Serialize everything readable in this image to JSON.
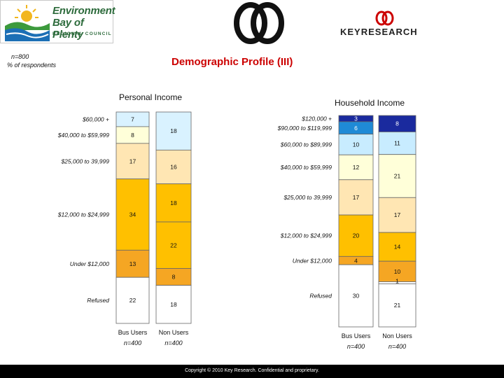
{
  "header": {
    "org_line1": "Environment",
    "org_line2": "Bay of Plenty",
    "org_line3": "REGIONAL COUNCIL",
    "brand": "KEYRESEARCH",
    "sample_note": "n=800",
    "units_note": "% of respondents",
    "title": "Demographic Profile (III)"
  },
  "footer": {
    "copyright": "Copyright © 2010 Key Research. Confidential and proprietary."
  },
  "colors": {
    "refused": "#ffffff",
    "under12": "#f5a623",
    "12to25": "#ffc000",
    "25to40": "#ffe6b3",
    "40to60": "#ffffd9",
    "60plus": "#d9f2ff",
    "60to90": "#c8ecff",
    "90to120": "#1f8ad6",
    "120plus": "#1a2a9e",
    "outline": "#666666",
    "title_red": "#cc0000"
  },
  "chart_data": [
    {
      "type": "bar",
      "stacked": true,
      "title": "Personal Income",
      "categories": [
        "Bus Users",
        "Non Users"
      ],
      "sample_sizes": [
        "n=400",
        "n=400"
      ],
      "segments": [
        {
          "name": "$60,000 +",
          "values": [
            7,
            18
          ]
        },
        {
          "name": "$40,000 to $59,999",
          "values": [
            8,
            null
          ]
        },
        {
          "name": "$25,000 to 39,999",
          "values": [
            17,
            16
          ]
        },
        {
          "name": "$12,000 to $24,999",
          "values": [
            34,
            18
          ]
        },
        {
          "name": "Under $12,000",
          "values": [
            13,
            22
          ]
        },
        {
          "name": "Refused",
          "values": [
            22,
            8
          ]
        },
        {
          "name": "",
          "values": [
            null,
            18
          ]
        }
      ]
    },
    {
      "type": "bar",
      "stacked": true,
      "title": "Household Income",
      "categories": [
        "Bus Users",
        "Non Users"
      ],
      "sample_sizes": [
        "n=400",
        "n=400"
      ],
      "segments": [
        {
          "name": "$120,000 +",
          "values": [
            3,
            8
          ]
        },
        {
          "name": "$90,000 to $119,999",
          "values": [
            6,
            null
          ]
        },
        {
          "name": "$60,000 to $89,999",
          "values": [
            10,
            11
          ]
        },
        {
          "name": "$40,000 to $59,999",
          "values": [
            12,
            21
          ]
        },
        {
          "name": "$25,000 to 39,999",
          "values": [
            17,
            17
          ]
        },
        {
          "name": "$12,000 to $24,999",
          "values": [
            20,
            14
          ]
        },
        {
          "name": "Under $12,000",
          "values": [
            4,
            10
          ]
        },
        {
          "name": "Refused",
          "values": [
            30,
            1
          ]
        },
        {
          "name": "",
          "values": [
            null,
            21
          ]
        }
      ]
    }
  ]
}
